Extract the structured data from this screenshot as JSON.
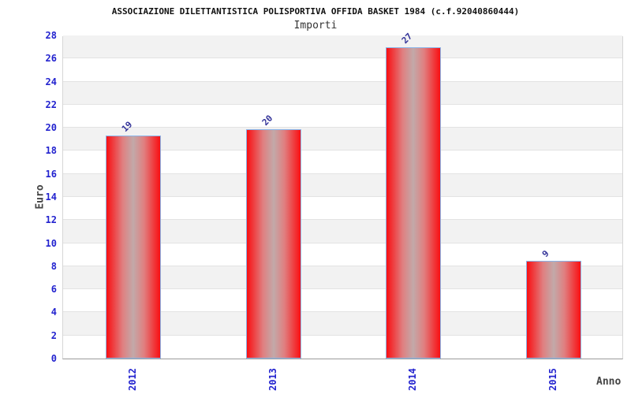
{
  "header": {
    "title": "ASSOCIAZIONE DILETTANTISTICA POLISPORTIVA OFFIDA BASKET 1984 (c.f.92040860444)",
    "subtitle": "Importi"
  },
  "chart_data": {
    "type": "bar",
    "title": "ASSOCIAZIONE DILETTANTISTICA POLISPORTIVA OFFIDA BASKET 1984 (c.f.92040860444)",
    "subtitle": "Importi",
    "categories": [
      "2012",
      "2013",
      "2014",
      "2015"
    ],
    "values": [
      19.3,
      19.9,
      27.0,
      8.5
    ],
    "bar_labels": [
      "19",
      "20",
      "27",
      "9"
    ],
    "xlabel": "Anno",
    "ylabel": "Euro",
    "ylim": [
      0,
      28
    ],
    "ytick_step": 2,
    "grid": true,
    "legend": "none",
    "colors": {
      "bar_edge": "#f90f12",
      "bar_center": "#c2a9a9",
      "bar_border": "#8ab4e8",
      "tick_text": "#2323cf",
      "value_text": "#333399",
      "stripe_gray": "#f2f2f2",
      "gridline": "#e3e3e3",
      "axis_text": "#444444"
    }
  }
}
